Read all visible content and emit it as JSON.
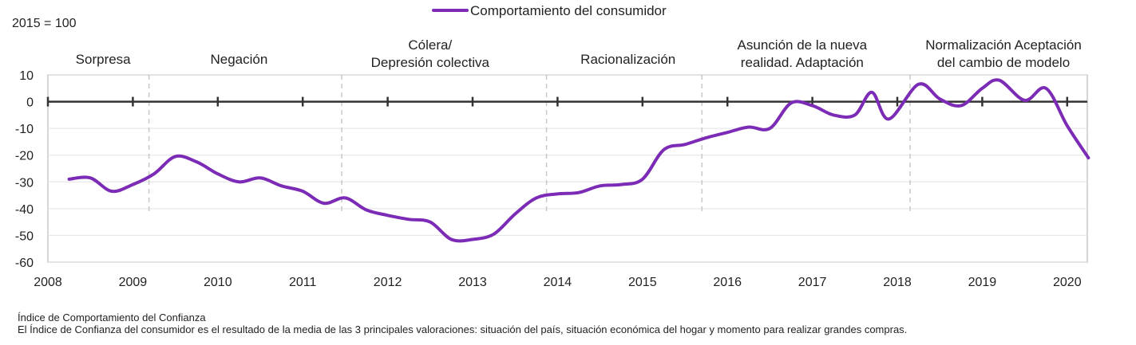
{
  "chart_data": {
    "type": "line",
    "base_note": "2015 = 100",
    "legend": {
      "placement": "top-center"
    },
    "series": [
      {
        "name": "Comportamiento del consumidor",
        "color": "#7b2bb5",
        "points": [
          [
            2008.25,
            -29
          ],
          [
            2008.5,
            -28.5
          ],
          [
            2008.75,
            -33.5
          ],
          [
            2009.0,
            -31
          ],
          [
            2009.25,
            -27
          ],
          [
            2009.5,
            -20.5
          ],
          [
            2009.75,
            -22.5
          ],
          [
            2010.0,
            -27
          ],
          [
            2010.25,
            -30
          ],
          [
            2010.5,
            -28.5
          ],
          [
            2010.75,
            -31.5
          ],
          [
            2011.0,
            -33.5
          ],
          [
            2011.25,
            -38
          ],
          [
            2011.5,
            -36
          ],
          [
            2011.75,
            -40.5
          ],
          [
            2012.0,
            -42.5
          ],
          [
            2012.25,
            -44
          ],
          [
            2012.5,
            -45
          ],
          [
            2012.75,
            -51.5
          ],
          [
            2013.0,
            -51.5
          ],
          [
            2013.25,
            -49.5
          ],
          [
            2013.5,
            -42
          ],
          [
            2013.75,
            -36
          ],
          [
            2014.0,
            -34.5
          ],
          [
            2014.25,
            -34
          ],
          [
            2014.5,
            -31.5
          ],
          [
            2014.75,
            -31
          ],
          [
            2015.0,
            -29
          ],
          [
            2015.25,
            -18
          ],
          [
            2015.5,
            -16
          ],
          [
            2015.75,
            -13.5
          ],
          [
            2016.0,
            -11.5
          ],
          [
            2016.25,
            -9.5
          ],
          [
            2016.5,
            -10
          ],
          [
            2016.75,
            -0.5
          ],
          [
            2017.0,
            -1.5
          ],
          [
            2017.25,
            -5
          ],
          [
            2017.5,
            -5
          ],
          [
            2017.7,
            3.5
          ],
          [
            2017.9,
            -6.5
          ],
          [
            2018.25,
            6.5
          ],
          [
            2018.5,
            1
          ],
          [
            2018.75,
            -1.5
          ],
          [
            2019.0,
            5
          ],
          [
            2019.2,
            8
          ],
          [
            2019.5,
            0.5
          ],
          [
            2019.75,
            5
          ],
          [
            2020.0,
            -9
          ],
          [
            2020.25,
            -21
          ]
        ]
      }
    ],
    "x": {
      "min": 2008,
      "max": 2020.25,
      "ticks": [
        "2008",
        "2009",
        "2010",
        "2011",
        "2012",
        "2013",
        "2014",
        "2015",
        "2016",
        "2017",
        "2018",
        "2019",
        "2020"
      ]
    },
    "y": {
      "min": -60,
      "max": 10,
      "ticks": [
        "10",
        "0",
        "-10",
        "-20",
        "-30",
        "-40",
        "-50",
        "-60"
      ]
    },
    "grid": true,
    "phases": [
      {
        "lines": [
          "Sorpresa"
        ],
        "x_center": 2008.65
      },
      {
        "lines": [
          "Negación"
        ],
        "x_center": 2010.25
      },
      {
        "lines": [
          "Cólera/",
          "Depresión colectiva"
        ],
        "x_center": 2012.5
      },
      {
        "lines": [
          "Racionalización"
        ],
        "x_center": 2014.83
      },
      {
        "lines": [
          "Asunción de la nueva",
          "realidad. Adaptación"
        ],
        "x_center": 2016.88
      },
      {
        "lines": [
          "Normalización Aceptación",
          "del cambio de modelo"
        ],
        "x_center": 2019.25
      }
    ],
    "phase_dividers": [
      2009.19,
      2011.46,
      2013.87,
      2015.7,
      2018.15
    ]
  },
  "footnote": {
    "title": "Índice de Comportamiento del Confianza",
    "text": "El Índice de Confianza del consumidor es el resultado de la media de las 3 principales valoraciones: situación del país, situación económica del hogar y momento para realizar grandes compras."
  }
}
